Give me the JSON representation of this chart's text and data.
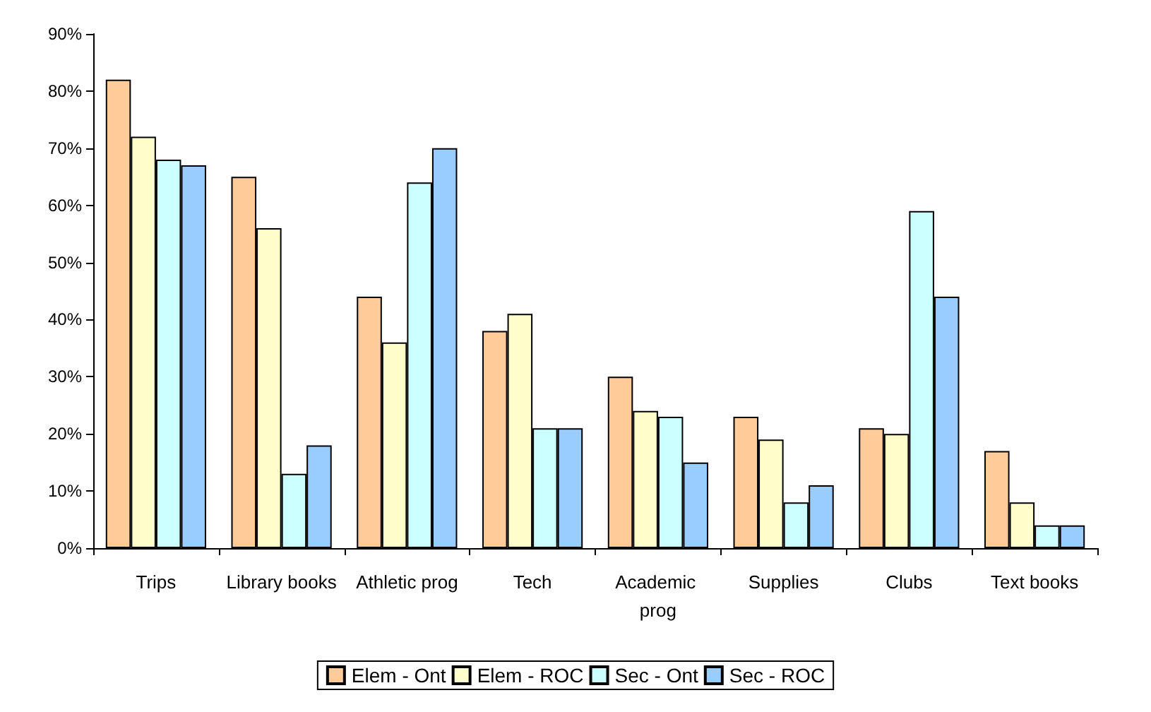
{
  "chart_data": {
    "type": "bar",
    "categories": [
      "Trips",
      "Library books",
      "Athletic prog",
      "Tech",
      "Academic prog",
      "Supplies",
      "Clubs",
      "Text books"
    ],
    "series": [
      {
        "name": "Elem - Ont",
        "color": "#ffcc99",
        "values": [
          82,
          65,
          44,
          38,
          30,
          23,
          21,
          17
        ]
      },
      {
        "name": "Elem - ROC",
        "color": "#ffffcc",
        "values": [
          72,
          56,
          36,
          41,
          24,
          19,
          20,
          8
        ]
      },
      {
        "name": "Sec - Ont",
        "color": "#ccffff",
        "values": [
          68,
          13,
          64,
          21,
          23,
          8,
          59,
          4
        ]
      },
      {
        "name": "Sec - ROC",
        "color": "#99ccff",
        "values": [
          67,
          18,
          70,
          21,
          15,
          11,
          44,
          4
        ]
      }
    ],
    "ylim": [
      0,
      90
    ],
    "yticks": [
      {
        "value": 0,
        "label": "0%"
      },
      {
        "value": 10,
        "label": "10%"
      },
      {
        "value": 20,
        "label": "20%"
      },
      {
        "value": 30,
        "label": "30%"
      },
      {
        "value": 40,
        "label": "40%"
      },
      {
        "value": 50,
        "label": "50%"
      },
      {
        "value": 60,
        "label": "60%"
      },
      {
        "value": 70,
        "label": "70%"
      },
      {
        "value": 80,
        "label": "80%"
      },
      {
        "value": 90,
        "label": "90%"
      }
    ],
    "legend": "bottom"
  }
}
